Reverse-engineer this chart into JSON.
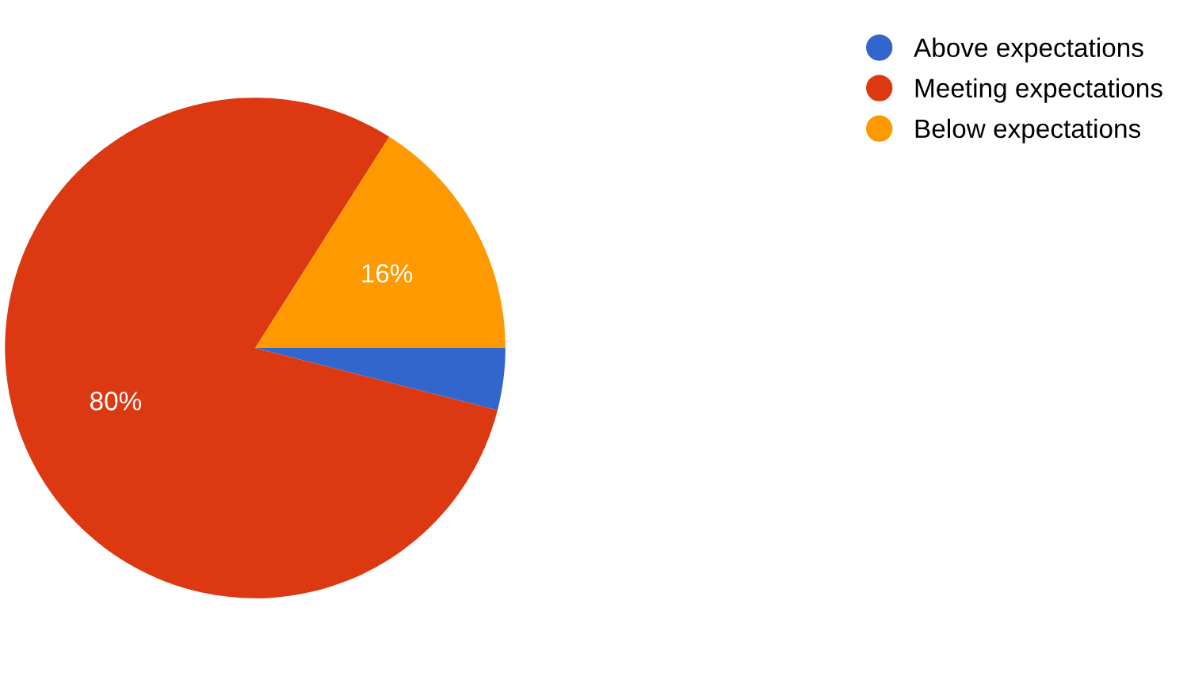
{
  "chart_data": {
    "type": "pie",
    "categories": [
      "Above expectations",
      "Meeting expectations",
      "Below expectations"
    ],
    "values": [
      4,
      80,
      16
    ],
    "colors": [
      "#3366cc",
      "#dc3912",
      "#ff9900"
    ],
    "value_labels": [
      null,
      "80%",
      "16%"
    ],
    "legend": "top right"
  }
}
